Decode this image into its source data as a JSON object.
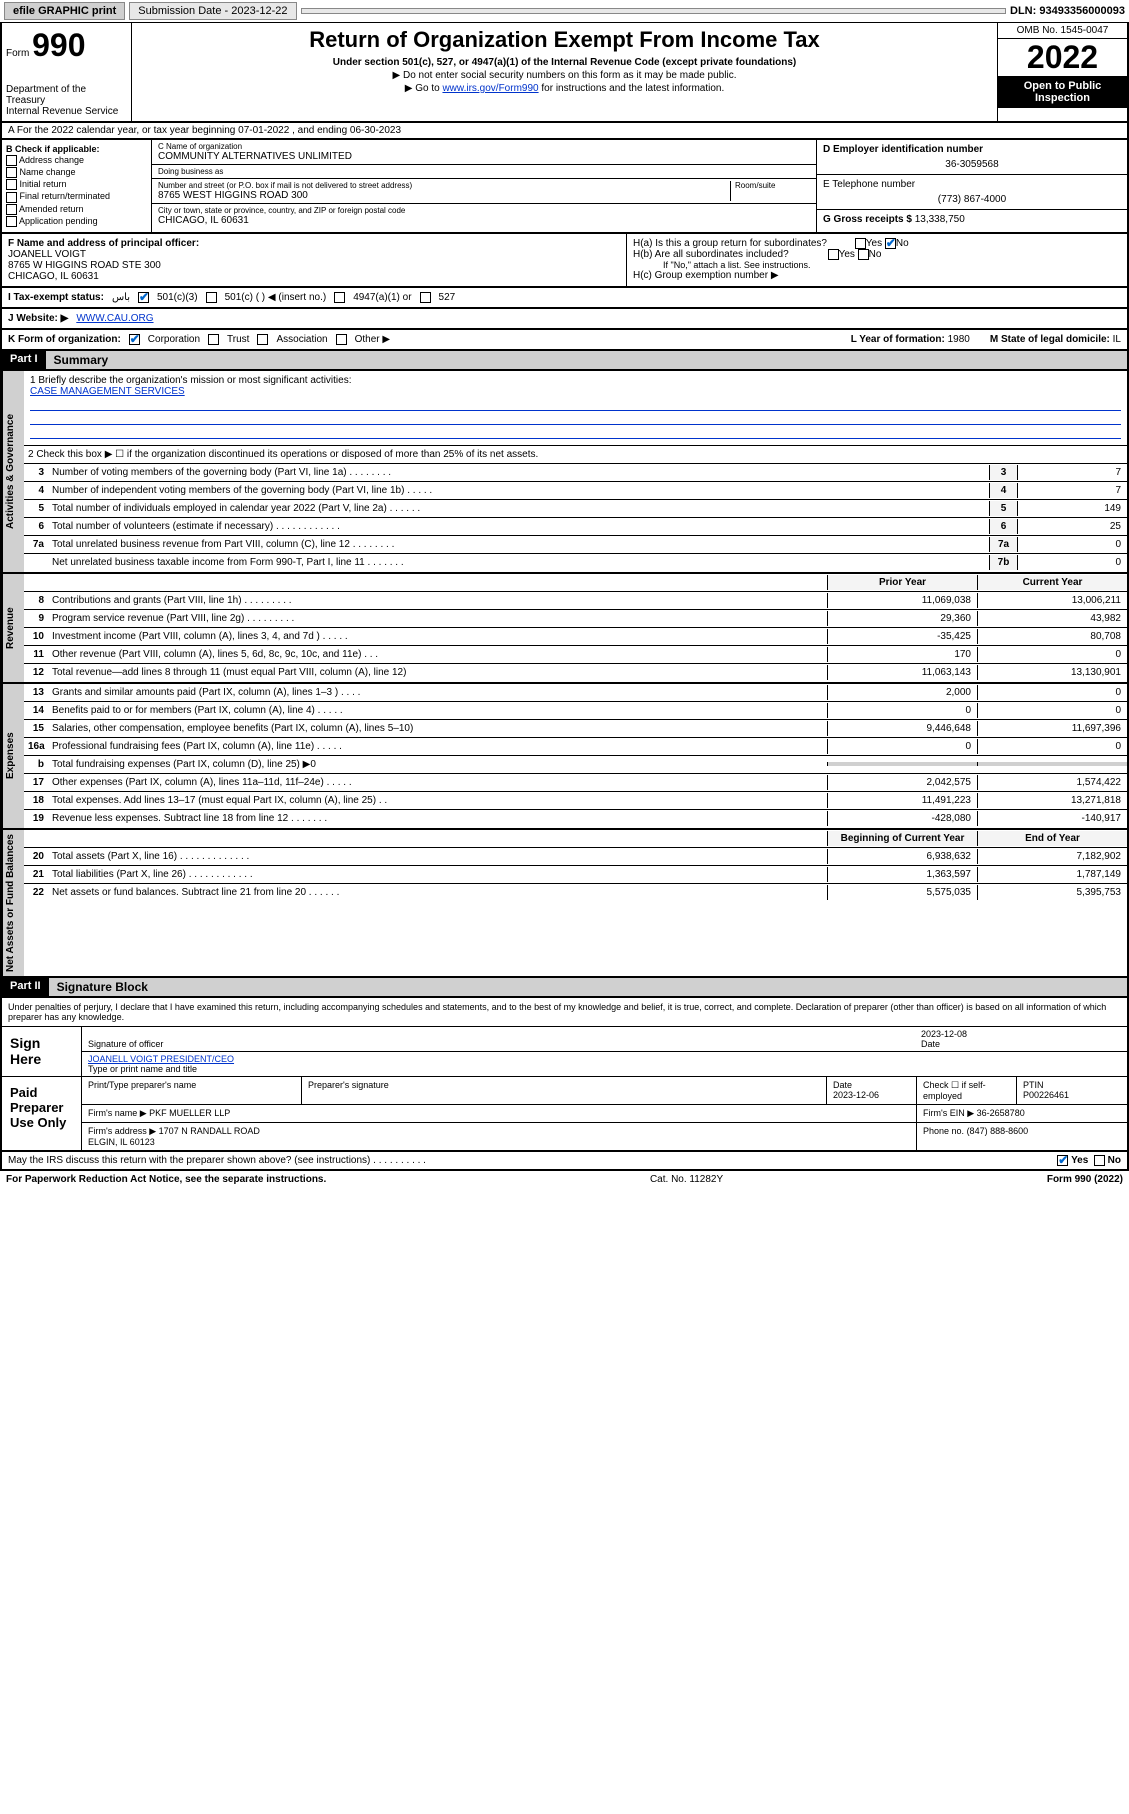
{
  "topbar": {
    "efile": "efile GRAPHIC print",
    "submission_label": "Submission Date - 2023-12-22",
    "dln": "DLN: 93493356000093"
  },
  "header": {
    "form_prefix": "Form",
    "form_number": "990",
    "dept": "Department of the Treasury",
    "irs": "Internal Revenue Service",
    "title": "Return of Organization Exempt From Income Tax",
    "subtitle": "Under section 501(c), 527, or 4947(a)(1) of the Internal Revenue Code (except private foundations)",
    "note1": "▶ Do not enter social security numbers on this form as it may be made public.",
    "note2_pre": "▶ Go to ",
    "note2_link": "www.irs.gov/Form990",
    "note2_post": " for instructions and the latest information.",
    "omb": "OMB No. 1545-0047",
    "year": "2022",
    "open": "Open to Public Inspection"
  },
  "line_a": "A For the 2022 calendar year, or tax year beginning 07-01-2022   , and ending 06-30-2023",
  "col_b": {
    "label": "B Check if applicable:",
    "items": [
      "Address change",
      "Name change",
      "Initial return",
      "Final return/terminated",
      "Amended return",
      "Application pending"
    ]
  },
  "col_c": {
    "name_lbl": "C Name of organization",
    "name": "COMMUNITY ALTERNATIVES UNLIMITED",
    "dba_lbl": "Doing business as",
    "dba": "",
    "addr_lbl": "Number and street (or P.O. box if mail is not delivered to street address)",
    "room_lbl": "Room/suite",
    "addr": "8765 WEST HIGGINS ROAD 300",
    "city_lbl": "City or town, state or province, country, and ZIP or foreign postal code",
    "city": "CHICAGO, IL  60631"
  },
  "col_d": {
    "ein_lbl": "D Employer identification number",
    "ein": "36-3059568",
    "tel_lbl": "E Telephone number",
    "tel": "(773) 867-4000",
    "gross_lbl": "G Gross receipts $",
    "gross": "13,338,750"
  },
  "row_f": {
    "lbl": "F Name and address of principal officer:",
    "name": "JOANELL VOIGT",
    "addr": "8765 W HIGGINS ROAD STE 300\nCHICAGO, IL  60631"
  },
  "row_h": {
    "ha": "H(a)  Is this a group return for subordinates?",
    "hb": "H(b)  Are all subordinates included?",
    "hb_note": "If \"No,\" attach a list. See instructions.",
    "hc": "H(c)  Group exemption number ▶",
    "yes": "Yes",
    "no": "No"
  },
  "row_i": {
    "lbl": "I   Tax-exempt status:",
    "o1": "501(c)(3)",
    "o2": "501(c) (   ) ◀ (insert no.)",
    "o3": "4947(a)(1) or",
    "o4": "527"
  },
  "row_j": {
    "lbl": "J   Website: ▶",
    "val": "WWW.CAU.ORG"
  },
  "row_k": {
    "lbl": "K Form of organization:",
    "o1": "Corporation",
    "o2": "Trust",
    "o3": "Association",
    "o4": "Other ▶",
    "l_lbl": "L Year of formation:",
    "l_val": "1980",
    "m_lbl": "M State of legal domicile:",
    "m_val": "IL"
  },
  "part1": {
    "hdr": "Part I",
    "title": "Summary",
    "mission_lbl": "1   Briefly describe the organization's mission or most significant activities:",
    "mission": "CASE MANAGEMENT SERVICES",
    "line2": "2   Check this box ▶ ☐  if the organization discontinued its operations or disposed of more than 25% of its net assets."
  },
  "gov_lines": [
    {
      "n": "3",
      "d": "Number of voting members of the governing body (Part VI, line 1a)   .    .    .    .    .    .    .    .",
      "b": "3",
      "v": "7"
    },
    {
      "n": "4",
      "d": "Number of independent voting members of the governing body (Part VI, line 1b)   .    .    .    .    .",
      "b": "4",
      "v": "7"
    },
    {
      "n": "5",
      "d": "Total number of individuals employed in calendar year 2022 (Part V, line 2a)   .    .    .    .    .    .",
      "b": "5",
      "v": "149"
    },
    {
      "n": "6",
      "d": "Total number of volunteers (estimate if necessary)   .    .    .    .    .    .    .    .    .    .    .    .",
      "b": "6",
      "v": "25"
    },
    {
      "n": "7a",
      "d": "Total unrelated business revenue from Part VIII, column (C), line 12   .    .    .    .    .    .    .    .",
      "b": "7a",
      "v": "0"
    },
    {
      "n": "",
      "d": "Net unrelated business taxable income from Form 990-T, Part I, line 11   .    .    .    .    .    .    .",
      "b": "7b",
      "v": "0"
    }
  ],
  "two_col_hdr": {
    "prior": "Prior Year",
    "current": "Current Year"
  },
  "rev_lines": [
    {
      "n": "8",
      "d": "Contributions and grants (Part VIII, line 1h)   .    .    .    .    .    .    .    .    .",
      "p": "11,069,038",
      "c": "13,006,211"
    },
    {
      "n": "9",
      "d": "Program service revenue (Part VIII, line 2g)   .    .    .    .    .    .    .    .    .",
      "p": "29,360",
      "c": "43,982"
    },
    {
      "n": "10",
      "d": "Investment income (Part VIII, column (A), lines 3, 4, and 7d )   .    .    .    .    .",
      "p": "-35,425",
      "c": "80,708"
    },
    {
      "n": "11",
      "d": "Other revenue (Part VIII, column (A), lines 5, 6d, 8c, 9c, 10c, and 11e)   .    .    .",
      "p": "170",
      "c": "0"
    },
    {
      "n": "12",
      "d": "Total revenue—add lines 8 through 11 (must equal Part VIII, column (A), line 12)",
      "p": "11,063,143",
      "c": "13,130,901"
    }
  ],
  "exp_lines": [
    {
      "n": "13",
      "d": "Grants and similar amounts paid (Part IX, column (A), lines 1–3 )   .    .    .    .",
      "p": "2,000",
      "c": "0"
    },
    {
      "n": "14",
      "d": "Benefits paid to or for members (Part IX, column (A), line 4)   .    .    .    .    .",
      "p": "0",
      "c": "0"
    },
    {
      "n": "15",
      "d": "Salaries, other compensation, employee benefits (Part IX, column (A), lines 5–10)",
      "p": "9,446,648",
      "c": "11,697,396"
    },
    {
      "n": "16a",
      "d": "Professional fundraising fees (Part IX, column (A), line 11e)   .    .    .    .    .",
      "p": "0",
      "c": "0"
    },
    {
      "n": "b",
      "d": "Total fundraising expenses (Part IX, column (D), line 25) ▶0",
      "p": "",
      "c": "",
      "shade": true
    },
    {
      "n": "17",
      "d": "Other expenses (Part IX, column (A), lines 11a–11d, 11f–24e)   .    .    .    .    .",
      "p": "2,042,575",
      "c": "1,574,422"
    },
    {
      "n": "18",
      "d": "Total expenses. Add lines 13–17 (must equal Part IX, column (A), line 25)   .    .",
      "p": "11,491,223",
      "c": "13,271,818"
    },
    {
      "n": "19",
      "d": "Revenue less expenses. Subtract line 18 from line 12   .    .    .    .    .    .    .",
      "p": "-428,080",
      "c": "-140,917"
    }
  ],
  "net_hdr": {
    "beg": "Beginning of Current Year",
    "end": "End of Year"
  },
  "net_lines": [
    {
      "n": "20",
      "d": "Total assets (Part X, line 16)   .    .    .    .    .    .    .    .    .    .    .    .    .",
      "p": "6,938,632",
      "c": "7,182,902"
    },
    {
      "n": "21",
      "d": "Total liabilities (Part X, line 26)   .    .    .    .    .    .    .    .    .    .    .    .",
      "p": "1,363,597",
      "c": "1,787,149"
    },
    {
      "n": "22",
      "d": "Net assets or fund balances. Subtract line 21 from line 20   .    .    .    .    .    .",
      "p": "5,575,035",
      "c": "5,395,753"
    }
  ],
  "vtabs": {
    "gov": "Activities & Governance",
    "rev": "Revenue",
    "exp": "Expenses",
    "net": "Net Assets or Fund Balances"
  },
  "part2": {
    "hdr": "Part II",
    "title": "Signature Block",
    "decl": "Under penalties of perjury, I declare that I have examined this return, including accompanying schedules and statements, and to the best of my knowledge and belief, it is true, correct, and complete. Declaration of preparer (other than officer) is based on all information of which preparer has any knowledge."
  },
  "sign": {
    "label": "Sign Here",
    "sig_lbl": "Signature of officer",
    "date": "2023-12-08",
    "date_lbl": "Date",
    "name": "JOANELL VOIGT PRESIDENT/CEO",
    "name_lbl": "Type or print name and title"
  },
  "prep": {
    "label": "Paid Preparer Use Only",
    "h1": "Print/Type preparer's name",
    "h2": "Preparer's signature",
    "h3": "Date",
    "h3v": "2023-12-06",
    "h4": "Check ☐ if self-employed",
    "h5": "PTIN",
    "h5v": "P00226461",
    "firm_lbl": "Firm's name    ▶",
    "firm": "PKF MUELLER LLP",
    "ein_lbl": "Firm's EIN ▶",
    "ein": "36-2658780",
    "addr_lbl": "か Firm's address ▶",
    "addr_lbl2": "Firm's address ▶",
    "addr": "1707 N RANDALL ROAD\nELGIN, IL  60123",
    "phone_lbl": "Phone no.",
    "phone": "(847) 888-8600"
  },
  "discuss": {
    "q": "May the IRS discuss this return with the preparer shown above? (see instructions)   .    .    .    .    .    .    .    .    .    .",
    "yes": "Yes",
    "no": "No"
  },
  "footer": {
    "pra": "For Paperwork Reduction Act Notice, see the separate instructions.",
    "cat": "Cat. No. 11282Y",
    "form": "Form 990 (2022)"
  }
}
